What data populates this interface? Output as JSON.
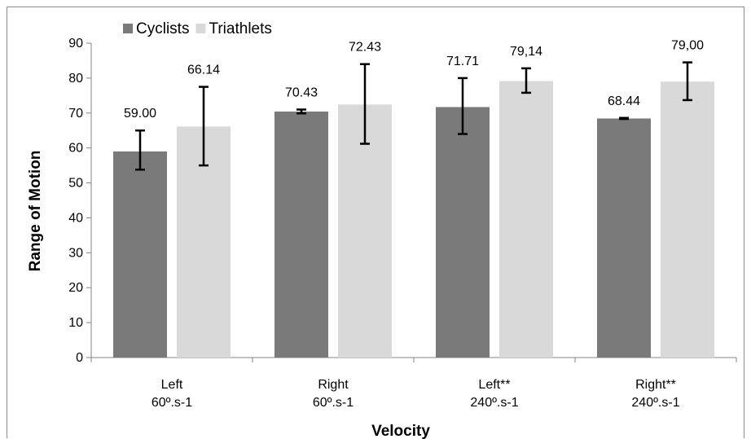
{
  "chart_data": {
    "type": "bar",
    "title": "",
    "xlabel": "Velocity",
    "ylabel": "Range of Motion",
    "ylim": [
      0,
      90
    ],
    "yticks": [
      0,
      10,
      20,
      30,
      40,
      50,
      60,
      70,
      80,
      90
    ],
    "grid": false,
    "legend_position": "top-left",
    "categories": [
      [
        "Left",
        "60º.s-1"
      ],
      [
        "Right",
        "60º.s-1"
      ],
      [
        "Left**",
        "240º.s-1"
      ],
      [
        "Right**",
        "240º.s-1"
      ]
    ],
    "series": [
      {
        "name": "Cyclists",
        "color": "#7a7a7a",
        "values": [
          59.0,
          70.43,
          71.71,
          68.44
        ],
        "labels": [
          "59.00",
          "70.43",
          "71.71",
          "68.44"
        ],
        "error_low": [
          53.8,
          69.9,
          64.0,
          68.3
        ],
        "error_high": [
          65.0,
          71.0,
          80.0,
          68.6
        ]
      },
      {
        "name": "Triathlets",
        "color": "#d9d9d9",
        "values": [
          66.14,
          72.43,
          79.14,
          79.0
        ],
        "labels": [
          "66.14",
          "72.43",
          "79,14",
          "79,00"
        ],
        "error_low": [
          55.0,
          61.2,
          75.8,
          73.7
        ],
        "error_high": [
          77.5,
          84.0,
          82.8,
          84.5
        ]
      }
    ]
  }
}
